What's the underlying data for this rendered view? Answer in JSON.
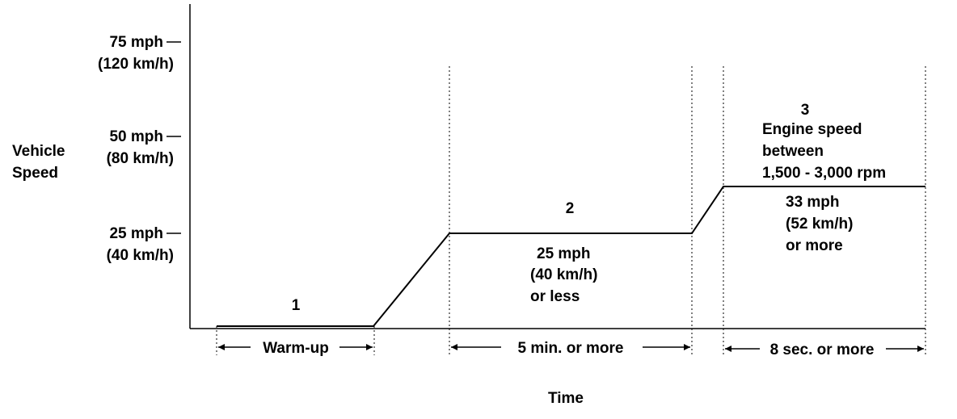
{
  "axes": {
    "ylabel": [
      "Vehicle",
      "Speed"
    ],
    "xlabel": "Time"
  },
  "yticks": [
    {
      "label": "75 mph",
      "metric": "(120 km/h)"
    },
    {
      "label": "50 mph",
      "metric": "(80 km/h)"
    },
    {
      "label": "25 mph",
      "metric": "(40 km/h)"
    }
  ],
  "phases": [
    {
      "number": "1"
    },
    {
      "number": "2",
      "condition": [
        "25 mph",
        "(40 km/h)",
        "or less"
      ]
    },
    {
      "number": "3",
      "condition": [
        "Engine speed",
        "between",
        "1,500 - 3,000 rpm"
      ],
      "speed": [
        "33 mph",
        "(52 km/h)",
        "or more"
      ]
    }
  ],
  "durations": [
    {
      "label": "Warm-up"
    },
    {
      "label": "5 min. or more"
    },
    {
      "label": "8 sec. or more"
    }
  ],
  "colors": {
    "ink": "#000000",
    "background": "#ffffff"
  }
}
